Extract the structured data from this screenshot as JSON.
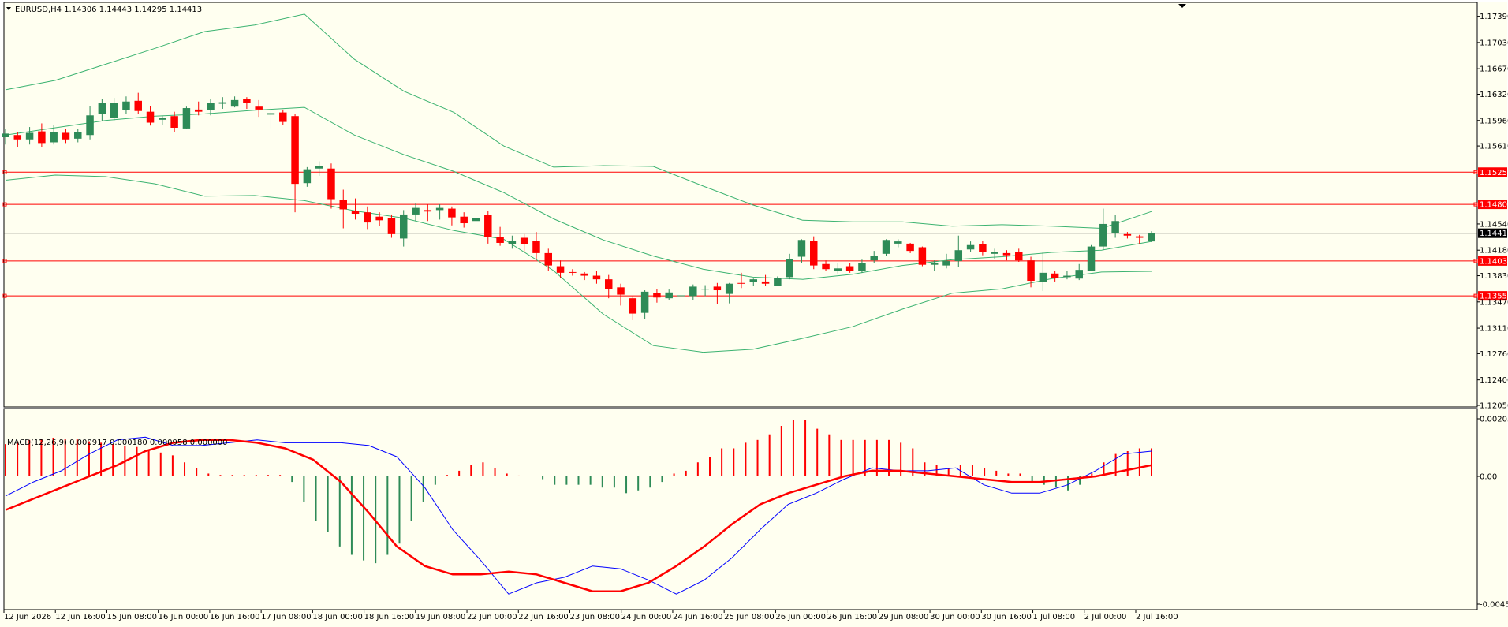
{
  "main_panel": {
    "symbol_header": "EURUSD,H4  1.14306 1.14443 1.14295 1.14413",
    "price_axis_labels": [
      "1.17390",
      "1.17030",
      "1.16670",
      "1.16320",
      "1.15960",
      "1.15610",
      "1.15251",
      "1.14809",
      "1.14540",
      "1.14413",
      "1.14180",
      "1.14032",
      "1.13830",
      "1.13553",
      "1.13470",
      "1.13110",
      "1.12760",
      "1.12400",
      "1.12050"
    ],
    "current_price_label": "1.14413",
    "level_labels": [
      "1.15251",
      "1.14809",
      "1.14032",
      "1.13553"
    ]
  },
  "macd_panel": {
    "header": "MACD(12,26,9) 0.000917 0.000180 0.000958 0.000000",
    "axis_labels": [
      "0.002055",
      "0.00",
      "-0.00456"
    ]
  },
  "time_axis_labels": [
    "12 Jun 2026",
    "12 Jun 16:00",
    "15 Jun 08:00",
    "16 Jun 00:00",
    "16 Jun 16:00",
    "17 Jun 08:00",
    "18 Jun 00:00",
    "18 Jun 16:00",
    "19 Jun 08:00",
    "22 Jun 00:00",
    "22 Jun 16:00",
    "23 Jun 08:00",
    "24 Jun 00:00",
    "24 Jun 16:00",
    "25 Jun 08:00",
    "26 Jun 00:00",
    "26 Jun 16:00",
    "29 Jun 08:00",
    "30 Jun 00:00",
    "30 Jun 16:00",
    "1 Jul 08:00",
    "2 Jul 00:00",
    "2 Jul 16:00"
  ],
  "colors": {
    "background": "#FFFFF0",
    "bull": "#2E8B57",
    "bear": "#FF0000",
    "bands": "#3CB371",
    "level_lines": "#FF0000",
    "macd_line": "#0000FF",
    "signal_line": "#FF0000"
  },
  "chart_data": {
    "type": "candlestick",
    "price_range": [
      1.1205,
      1.1757
    ],
    "candles": [
      [
        1.1573,
        1.1584,
        1.1563,
        1.1578
      ],
      [
        1.1576,
        1.158,
        1.156,
        1.157
      ],
      [
        1.157,
        1.1587,
        1.1563,
        1.1579
      ],
      [
        1.1581,
        1.1592,
        1.156,
        1.1565
      ],
      [
        1.1566,
        1.159,
        1.1563,
        1.158
      ],
      [
        1.1579,
        1.1584,
        1.1565,
        1.157
      ],
      [
        1.1571,
        1.1584,
        1.1566,
        1.158
      ],
      [
        1.1576,
        1.1616,
        1.157,
        1.1603
      ],
      [
        1.1605,
        1.1625,
        1.1595,
        1.162
      ],
      [
        1.16,
        1.1627,
        1.1596,
        1.162
      ],
      [
        1.161,
        1.1629,
        1.1605,
        1.1622
      ],
      [
        1.1623,
        1.1634,
        1.1605,
        1.1609
      ],
      [
        1.1608,
        1.1616,
        1.1589,
        1.1593
      ],
      [
        1.1597,
        1.1602,
        1.159,
        1.16
      ],
      [
        1.1602,
        1.1608,
        1.158,
        1.1586
      ],
      [
        1.1585,
        1.1615,
        1.1584,
        1.1613
      ],
      [
        1.1611,
        1.1622,
        1.1603,
        1.1608
      ],
      [
        1.161,
        1.1625,
        1.1603,
        1.162
      ],
      [
        1.1619,
        1.1628,
        1.1612,
        1.1621
      ],
      [
        1.1615,
        1.1629,
        1.1614,
        1.1624
      ],
      [
        1.1625,
        1.1628,
        1.1612,
        1.162
      ],
      [
        1.1615,
        1.1624,
        1.1601,
        1.1611
      ],
      [
        1.1604,
        1.1615,
        1.1585,
        1.1606
      ],
      [
        1.1607,
        1.1611,
        1.159,
        1.1594
      ],
      [
        1.1602,
        1.1605,
        1.147,
        1.1509
      ],
      [
        1.151,
        1.1532,
        1.1505,
        1.1529
      ],
      [
        1.153,
        1.154,
        1.152,
        1.1533
      ],
      [
        1.153,
        1.1537,
        1.1475,
        1.1488
      ],
      [
        1.1487,
        1.1501,
        1.1448,
        1.1474
      ],
      [
        1.1472,
        1.1489,
        1.146,
        1.1468
      ],
      [
        1.147,
        1.1478,
        1.1447,
        1.1456
      ],
      [
        1.1464,
        1.147,
        1.1451,
        1.1459
      ],
      [
        1.1462,
        1.1467,
        1.1435,
        1.144
      ],
      [
        1.1434,
        1.1473,
        1.1423,
        1.1467
      ],
      [
        1.1467,
        1.1482,
        1.1458,
        1.1476
      ],
      [
        1.1473,
        1.1481,
        1.1458,
        1.1471
      ],
      [
        1.1473,
        1.1481,
        1.146,
        1.1476
      ],
      [
        1.1475,
        1.1478,
        1.1452,
        1.1463
      ],
      [
        1.1464,
        1.147,
        1.1449,
        1.1455
      ],
      [
        1.1458,
        1.1466,
        1.1444,
        1.1462
      ],
      [
        1.1466,
        1.1472,
        1.1427,
        1.1436
      ],
      [
        1.1436,
        1.145,
        1.1424,
        1.1428
      ],
      [
        1.1426,
        1.1438,
        1.142,
        1.1431
      ],
      [
        1.1435,
        1.144,
        1.1416,
        1.1426
      ],
      [
        1.1431,
        1.1443,
        1.1405,
        1.1414
      ],
      [
        1.1414,
        1.142,
        1.139,
        1.1397
      ],
      [
        1.1396,
        1.1404,
        1.138,
        1.1387
      ],
      [
        1.1388,
        1.1392,
        1.1383,
        1.1387
      ],
      [
        1.1386,
        1.1388,
        1.1377,
        1.1383
      ],
      [
        1.1383,
        1.1389,
        1.1372,
        1.1378
      ],
      [
        1.1378,
        1.1384,
        1.1352,
        1.1365
      ],
      [
        1.1367,
        1.1372,
        1.1342,
        1.1357
      ],
      [
        1.1352,
        1.1355,
        1.1322,
        1.1331
      ],
      [
        1.1332,
        1.1363,
        1.1324,
        1.1361
      ],
      [
        1.1359,
        1.1365,
        1.1346,
        1.1353
      ],
      [
        1.1352,
        1.1364,
        1.135,
        1.136
      ],
      [
        1.1356,
        1.1366,
        1.1351,
        1.1356
      ],
      [
        1.1355,
        1.1371,
        1.135,
        1.1368
      ],
      [
        1.1365,
        1.137,
        1.1355,
        1.1365
      ],
      [
        1.1368,
        1.1373,
        1.1344,
        1.1363
      ],
      [
        1.1358,
        1.1373,
        1.1345,
        1.1372
      ],
      [
        1.1373,
        1.1387,
        1.1366,
        1.1372
      ],
      [
        1.1374,
        1.1379,
        1.1369,
        1.1378
      ],
      [
        1.1375,
        1.1384,
        1.1369,
        1.1372
      ],
      [
        1.1369,
        1.1382,
        1.1369,
        1.138
      ],
      [
        1.1381,
        1.1413,
        1.1378,
        1.1406
      ],
      [
        1.1409,
        1.1433,
        1.14,
        1.1432
      ],
      [
        1.1431,
        1.1437,
        1.1392,
        1.1397
      ],
      [
        1.1399,
        1.1404,
        1.139,
        1.1392
      ],
      [
        1.139,
        1.14,
        1.1386,
        1.1393
      ],
      [
        1.1396,
        1.14,
        1.1387,
        1.139
      ],
      [
        1.139,
        1.1405,
        1.1387,
        1.14
      ],
      [
        1.1404,
        1.1417,
        1.14,
        1.141
      ],
      [
        1.1413,
        1.1433,
        1.141,
        1.1432
      ],
      [
        1.1427,
        1.1433,
        1.1422,
        1.143
      ],
      [
        1.1427,
        1.1428,
        1.1414,
        1.1417
      ],
      [
        1.1422,
        1.1423,
        1.1396,
        1.1398
      ],
      [
        1.1398,
        1.1404,
        1.1389,
        1.14
      ],
      [
        1.1397,
        1.1413,
        1.1393,
        1.1403
      ],
      [
        1.1403,
        1.1438,
        1.1395,
        1.1418
      ],
      [
        1.1419,
        1.143,
        1.1416,
        1.1425
      ],
      [
        1.1426,
        1.1431,
        1.1411,
        1.1416
      ],
      [
        1.1413,
        1.142,
        1.1406,
        1.1415
      ],
      [
        1.1414,
        1.1418,
        1.1404,
        1.1411
      ],
      [
        1.1415,
        1.142,
        1.1402,
        1.1404
      ],
      [
        1.1404,
        1.1409,
        1.1367,
        1.1376
      ],
      [
        1.1374,
        1.1415,
        1.1362,
        1.1387
      ],
      [
        1.1386,
        1.139,
        1.1375,
        1.138
      ],
      [
        1.1381,
        1.1389,
        1.1378,
        1.1383
      ],
      [
        1.1379,
        1.1399,
        1.1377,
        1.1391
      ],
      [
        1.139,
        1.1425,
        1.1389,
        1.1423
      ],
      [
        1.1423,
        1.1475,
        1.1418,
        1.1454
      ],
      [
        1.1441,
        1.1466,
        1.1435,
        1.1458
      ],
      [
        1.144,
        1.1443,
        1.1434,
        1.1438
      ],
      [
        1.1437,
        1.1439,
        1.1427,
        1.1435
      ],
      [
        1.143,
        1.1444,
        1.1429,
        1.1441
      ]
    ],
    "horizontal_levels": [
      1.15251,
      1.14809,
      1.14032,
      1.13553
    ],
    "current_price": 1.14413,
    "bollinger_upper": [
      1.1638,
      1.1651,
      1.1673,
      1.1695,
      1.1718,
      1.1727,
      1.1742,
      1.168,
      1.1636,
      1.1607,
      1.1561,
      1.1532,
      1.1534,
      1.1533,
      1.1506,
      1.148,
      1.1459,
      1.1457,
      1.1457,
      1.1451,
      1.1453,
      1.1451,
      1.1448,
      1.1471
    ],
    "bollinger_middle": [
      1.1576,
      1.1586,
      1.1596,
      1.1602,
      1.1605,
      1.161,
      1.1614,
      1.1576,
      1.1549,
      1.1526,
      1.1497,
      1.1461,
      1.1432,
      1.141,
      1.1392,
      1.1381,
      1.1378,
      1.1385,
      1.1397,
      1.1405,
      1.1409,
      1.1415,
      1.1418,
      1.143
    ],
    "bollinger_lower": [
      1.1514,
      1.1521,
      1.1519,
      1.1509,
      1.1492,
      1.1493,
      1.1486,
      1.1472,
      1.1462,
      1.1445,
      1.1433,
      1.139,
      1.133,
      1.1287,
      1.1278,
      1.1282,
      1.1297,
      1.1313,
      1.1337,
      1.1359,
      1.1365,
      1.1379,
      1.1388,
      1.1389
    ],
    "macd_range": [
      -0.00456,
      0.002055
    ],
    "macd_histogram": [
      0.00115,
      0.00125,
      0.0013,
      0.00135,
      0.00138,
      0.00135,
      0.00132,
      0.00125,
      0.0012,
      0.00115,
      0.0011,
      0.00105,
      0.00095,
      0.00085,
      0.00075,
      0.0005,
      0.0003,
      0.0001,
      5e-05,
      5e-05,
      5e-05,
      5e-05,
      5e-05,
      5e-05,
      -0.0002,
      -0.0009,
      -0.0016,
      -0.002,
      -0.0025,
      -0.0028,
      -0.003,
      -0.0031,
      -0.0028,
      -0.0024,
      -0.0016,
      -0.0009,
      -0.0003,
      5e-05,
      0.0002,
      0.0004,
      0.0005,
      0.0003,
      0.0001,
      3e-05,
      2e-05,
      -0.0001,
      -0.0003,
      -0.0003,
      -0.0003,
      -0.0003,
      -0.0004,
      -0.0004,
      -0.0006,
      -0.0005,
      -0.0004,
      -0.0002,
      0.0001,
      0.0002,
      0.0005,
      0.0007,
      0.001,
      0.001,
      0.0012,
      0.0013,
      0.0015,
      0.0018,
      0.002,
      0.002,
      0.0017,
      0.0015,
      0.0013,
      0.0013,
      0.0013,
      0.0013,
      0.0013,
      0.0012,
      0.001,
      0.0005,
      0.0004,
      0.0003,
      0.0004,
      0.0004,
      0.0003,
      0.0002,
      0.0001,
      0.0001,
      -0.0002,
      -0.0003,
      -0.0004,
      -0.0005,
      -0.0003,
      0.0001,
      0.0005,
      0.0008,
      0.0009,
      0.001,
      0.001
    ],
    "macd_line": [
      -0.0007,
      -0.0002,
      0.0002,
      0.0008,
      0.0013,
      0.0014,
      0.0011,
      0.0011,
      0.0012,
      0.0013,
      0.0012,
      0.0012,
      0.0012,
      0.0011,
      0.0007,
      -0.0004,
      -0.0019,
      -0.003,
      -0.0042,
      -0.0038,
      -0.0036,
      -0.0032,
      -0.0033,
      -0.0037,
      -0.0042,
      -0.0037,
      -0.0029,
      -0.0019,
      -0.001,
      -0.0006,
      -0.0001,
      0.0003,
      0.0002,
      0.0002,
      0.0003,
      -0.0003,
      -0.0006,
      -0.0006,
      -0.0003,
      0.0002,
      0.0008,
      0.0009
    ],
    "signal_line": [
      -0.0012,
      -0.0008,
      -0.0004,
      0.0,
      0.0004,
      0.0009,
      0.0012,
      0.0013,
      0.0013,
      0.0012,
      0.001,
      0.0006,
      -0.0002,
      -0.0013,
      -0.0025,
      -0.0032,
      -0.0035,
      -0.0035,
      -0.0034,
      -0.0035,
      -0.0038,
      -0.0041,
      -0.0041,
      -0.0038,
      -0.0032,
      -0.0025,
      -0.0017,
      -0.001,
      -0.0006,
      -0.0003,
      0.0,
      0.0002,
      0.0002,
      0.0001,
      0.0,
      -0.0001,
      -0.0002,
      -0.0002,
      -0.0001,
      0.0,
      0.0002,
      0.0004
    ]
  }
}
